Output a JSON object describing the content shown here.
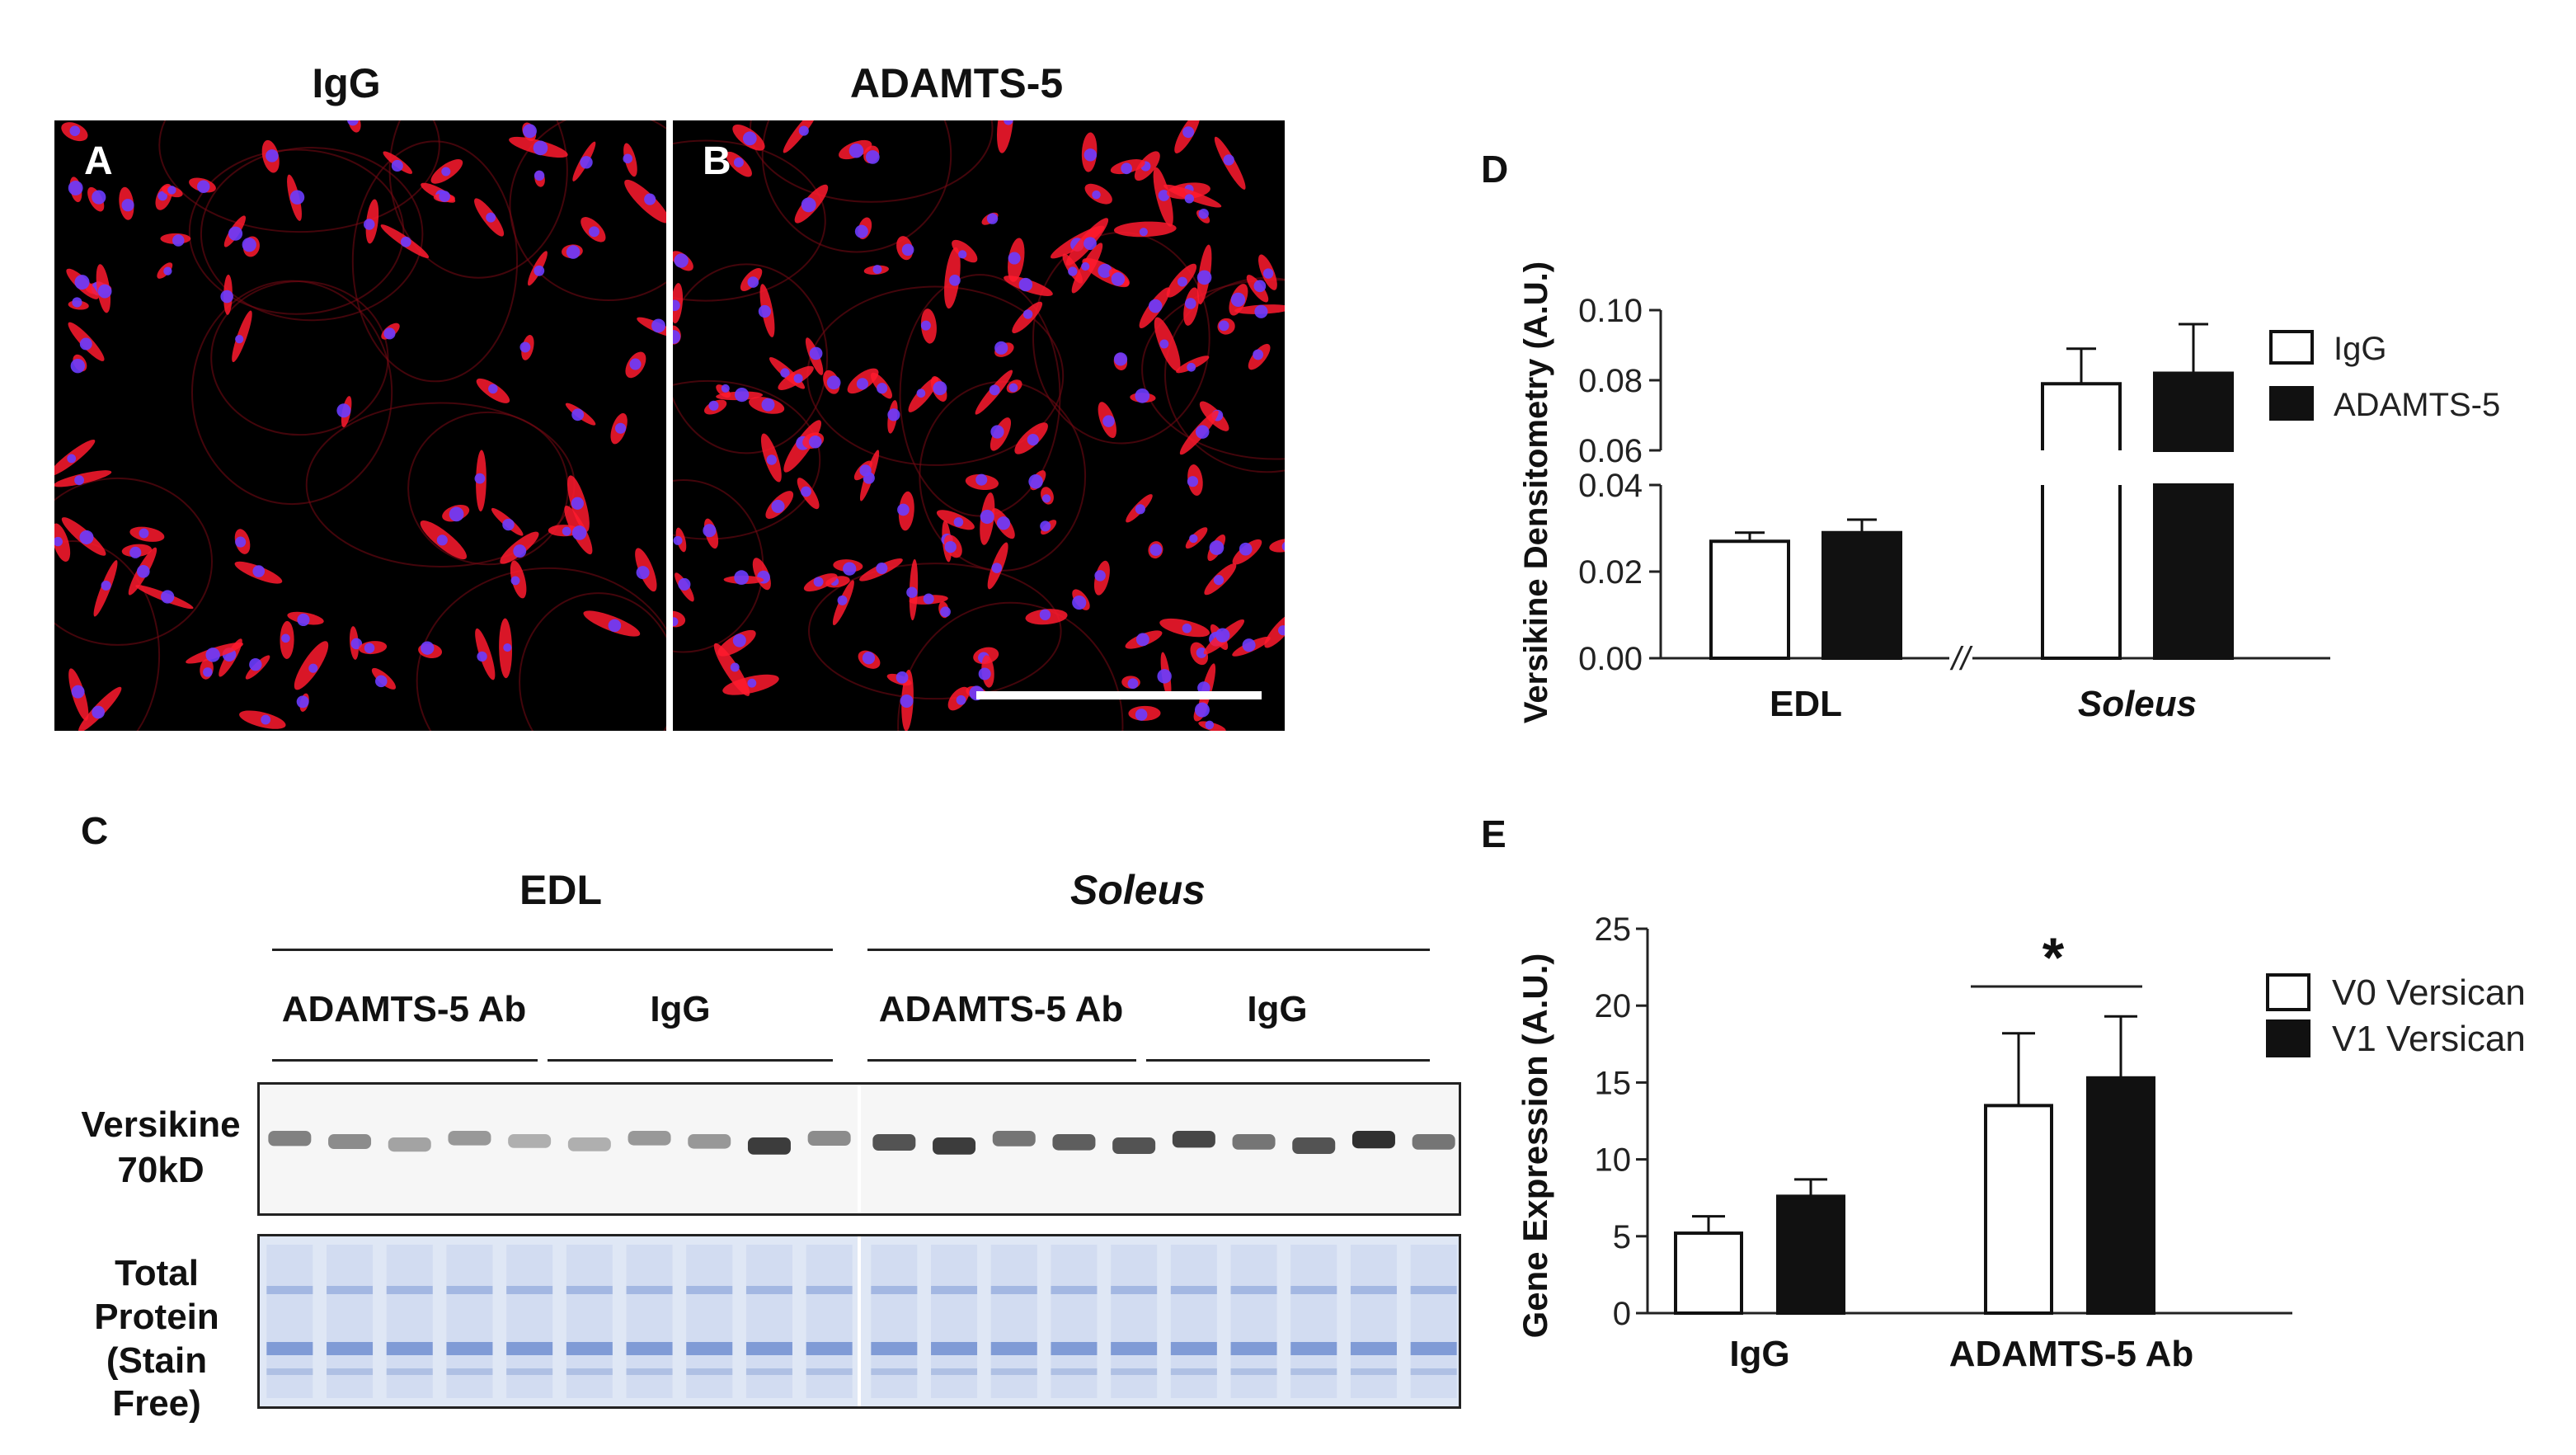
{
  "panels": {
    "A": "A",
    "B": "B",
    "C": "C",
    "D": "D",
    "E": "E"
  },
  "micrographs": {
    "left_title": "IgG",
    "right_title": "ADAMTS-5"
  },
  "blot": {
    "group_labels": [
      "EDL",
      "Soleus"
    ],
    "sub_labels": [
      "ADAMTS-5 Ab",
      "IgG",
      "ADAMTS-5 Ab",
      "IgG"
    ],
    "row1_label_line1": "Versikine",
    "row1_label_line2": "70kD",
    "row2_label_line1": "Total",
    "row2_label_line2": "Protein",
    "row2_label_line3": "(Stain",
    "row2_label_line4": "Free)",
    "band_intensity": [
      0.55,
      0.5,
      0.4,
      0.45,
      0.35,
      0.35,
      0.45,
      0.45,
      0.85,
      0.5,
      0.75,
      0.85,
      0.6,
      0.7,
      0.75,
      0.8,
      0.6,
      0.75,
      0.9,
      0.6
    ]
  },
  "chart_data": [
    {
      "type": "bar",
      "panel": "D",
      "ylabel": "Versikine Densitometry (A.U.)",
      "categories": [
        "EDL",
        "Soleus"
      ],
      "category_italic": [
        false,
        true
      ],
      "series": [
        {
          "name": "IgG",
          "values": [
            0.027,
            0.079
          ],
          "errors": [
            0.002,
            0.01
          ],
          "color": "#ffffff"
        },
        {
          "name": "ADAMTS-5",
          "values": [
            0.029,
            0.082
          ],
          "errors": [
            0.003,
            0.014
          ],
          "color": "#111111"
        }
      ],
      "y_ticks_lower": [
        "0.00",
        "0.02",
        "0.04"
      ],
      "y_ticks_upper": [
        "0.06",
        "0.08",
        "0.10"
      ],
      "y_break": [
        0.04,
        0.06
      ],
      "x_break_mark": "//",
      "legend_position": "right"
    },
    {
      "type": "bar",
      "panel": "E",
      "ylabel": "Gene Expression (A.U.)",
      "categories": [
        "IgG",
        "ADAMTS-5 Ab"
      ],
      "series": [
        {
          "name": "V0 Versican",
          "values": [
            5.2,
            13.5
          ],
          "errors": [
            1.1,
            4.7
          ],
          "color": "#ffffff"
        },
        {
          "name": "V1 Versican",
          "values": [
            7.6,
            15.3
          ],
          "errors": [
            1.1,
            4.0
          ],
          "color": "#111111"
        }
      ],
      "ylim": [
        0,
        25
      ],
      "y_ticks": [
        "0",
        "5",
        "10",
        "15",
        "20",
        "25"
      ],
      "significance": "*",
      "legend_position": "top-right"
    }
  ]
}
